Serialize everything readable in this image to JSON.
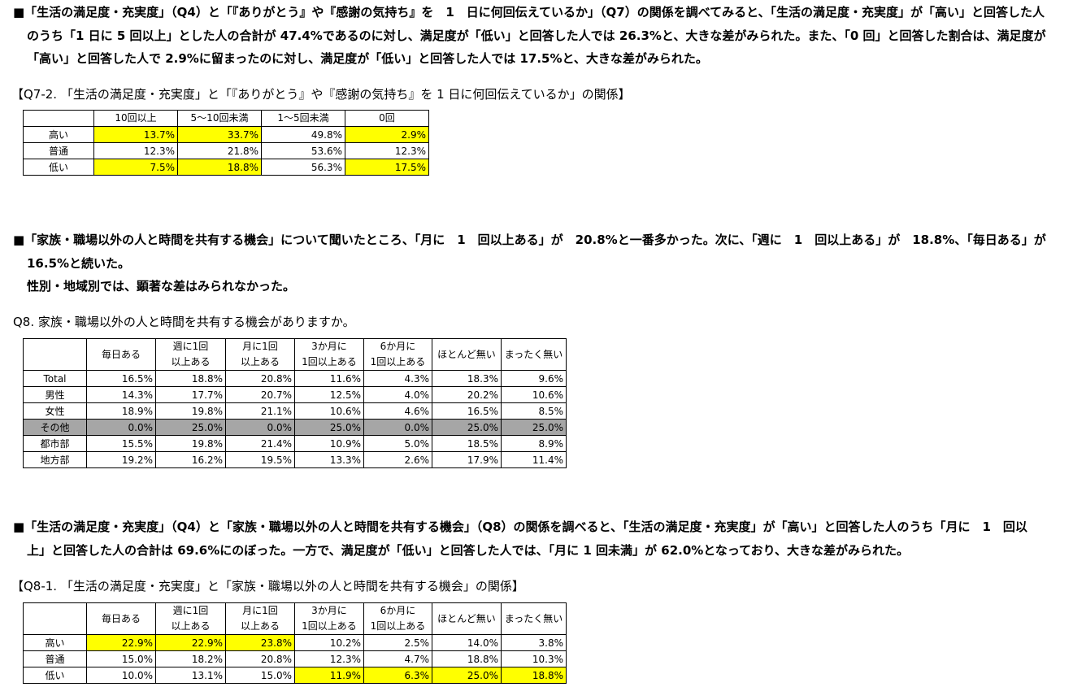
{
  "section1": {
    "lines": [
      "■「生活の満足度・充実度」（Q4）と「『ありがとう』や『感謝の気持ち』を　1　日に何回伝えているか」（Q7）の関係を調べてみると、「生活の満足度・充実度」が「高い」と回答した人",
      "のうち「1 日に 5 回以上」とした人の合計が 47.4%であるのに対し、満足度が「低い」と回答した人では 26.3%と、大きな差がみられた。また、「0 回」と回答した割合は、満足度が",
      "「高い」と回答した人で 2.9%に留まったのに対し、満足度が「低い」と回答した人では 17.5%と、大きな差がみられた。"
    ]
  },
  "table1": {
    "caption": "【Q7-2. 「生活の満足度・充実度」と「『ありがとう』や『感謝の気持ち』を 1 日に何回伝えているか」の関係】",
    "headers": [
      "",
      "10回以上",
      "5～10回未満",
      "1～5回未満",
      "0回"
    ],
    "rows": [
      {
        "label": "高い",
        "values": [
          "13.7%",
          "33.7%",
          "49.8%",
          "2.9%"
        ],
        "highlight": [
          true,
          true,
          false,
          true
        ]
      },
      {
        "label": "普通",
        "values": [
          "12.3%",
          "21.8%",
          "53.6%",
          "12.3%"
        ],
        "highlight": [
          false,
          false,
          false,
          false
        ]
      },
      {
        "label": "低い",
        "values": [
          "7.5%",
          "18.8%",
          "56.3%",
          "17.5%"
        ],
        "highlight": [
          true,
          true,
          false,
          true
        ]
      }
    ]
  },
  "section2": {
    "lines": [
      "■「家族・職場以外の人と時間を共有する機会」について聞いたところ、「月に　1　回以上ある」が　20.8%と一番多かった。次に、「週に　1　回以上ある」が　18.8%、「毎日ある」が",
      "16.5%と続いた。",
      "性別・地域別では、顕著な差はみられなかった。"
    ]
  },
  "table2": {
    "caption": "Q8. 家族・職場以外の人と時間を共有する機会がありますか。",
    "headers": [
      "",
      "毎日ある",
      "週に1回\n以上ある",
      "月に1回\n以上ある",
      "3か月に\n1回以上ある",
      "6か月に\n1回以上ある",
      "ほとんど無い",
      "まったく無い"
    ],
    "rows": [
      {
        "label": "Total",
        "values": [
          "16.5%",
          "18.8%",
          "20.8%",
          "11.6%",
          "4.3%",
          "18.3%",
          "9.6%"
        ]
      },
      {
        "label": "男性",
        "values": [
          "14.3%",
          "17.7%",
          "20.7%",
          "12.5%",
          "4.0%",
          "20.2%",
          "10.6%"
        ]
      },
      {
        "label": "女性",
        "values": [
          "18.9%",
          "19.8%",
          "21.1%",
          "10.6%",
          "4.6%",
          "16.5%",
          "8.5%"
        ]
      },
      {
        "label": "その他",
        "values": [
          "0.0%",
          "25.0%",
          "0.0%",
          "25.0%",
          "0.0%",
          "25.0%",
          "25.0%"
        ],
        "shaded": true
      },
      {
        "label": "都市部",
        "values": [
          "15.5%",
          "19.8%",
          "21.4%",
          "10.9%",
          "5.0%",
          "18.5%",
          "8.9%"
        ]
      },
      {
        "label": "地方部",
        "values": [
          "19.2%",
          "16.2%",
          "19.5%",
          "13.3%",
          "2.6%",
          "17.9%",
          "11.4%"
        ]
      }
    ]
  },
  "section3": {
    "lines": [
      "■「生活の満足度・充実度」（Q4）と「家族・職場以外の人と時間を共有する機会」（Q8）の関係を調べると、「生活の満足度・充実度」が「高い」と回答した人のうち「月に　1　回以",
      "上」と回答した人の合計は 69.6%にのぼった。一方で、満足度が「低い」と回答した人では、「月に 1 回未満」が 62.0%となっており、大きな差がみられた。"
    ]
  },
  "table3": {
    "caption": "【Q8-1. 「生活の満足度・充実度」と「家族・職場以外の人と時間を共有する機会」の関係】",
    "headers": [
      "",
      "毎日ある",
      "週に1回\n以上ある",
      "月に1回\n以上ある",
      "3か月に\n1回以上ある",
      "6か月に\n1回以上ある",
      "ほとんど無い",
      "まったく無い"
    ],
    "rows": [
      {
        "label": "高い",
        "values": [
          "22.9%",
          "22.9%",
          "23.8%",
          "10.2%",
          "2.5%",
          "14.0%",
          "3.8%"
        ],
        "highlight": [
          true,
          true,
          true,
          false,
          false,
          false,
          false
        ]
      },
      {
        "label": "普通",
        "values": [
          "15.0%",
          "18.2%",
          "20.8%",
          "12.3%",
          "4.7%",
          "18.8%",
          "10.3%"
        ],
        "highlight": [
          false,
          false,
          false,
          false,
          false,
          false,
          false
        ]
      },
      {
        "label": "低い",
        "values": [
          "10.0%",
          "13.1%",
          "15.0%",
          "11.9%",
          "6.3%",
          "25.0%",
          "18.8%"
        ],
        "highlight": [
          false,
          false,
          false,
          true,
          true,
          true,
          true
        ]
      }
    ]
  },
  "colors": {
    "highlight": "#ffff00",
    "shaded_row": "#a6a6a6"
  }
}
